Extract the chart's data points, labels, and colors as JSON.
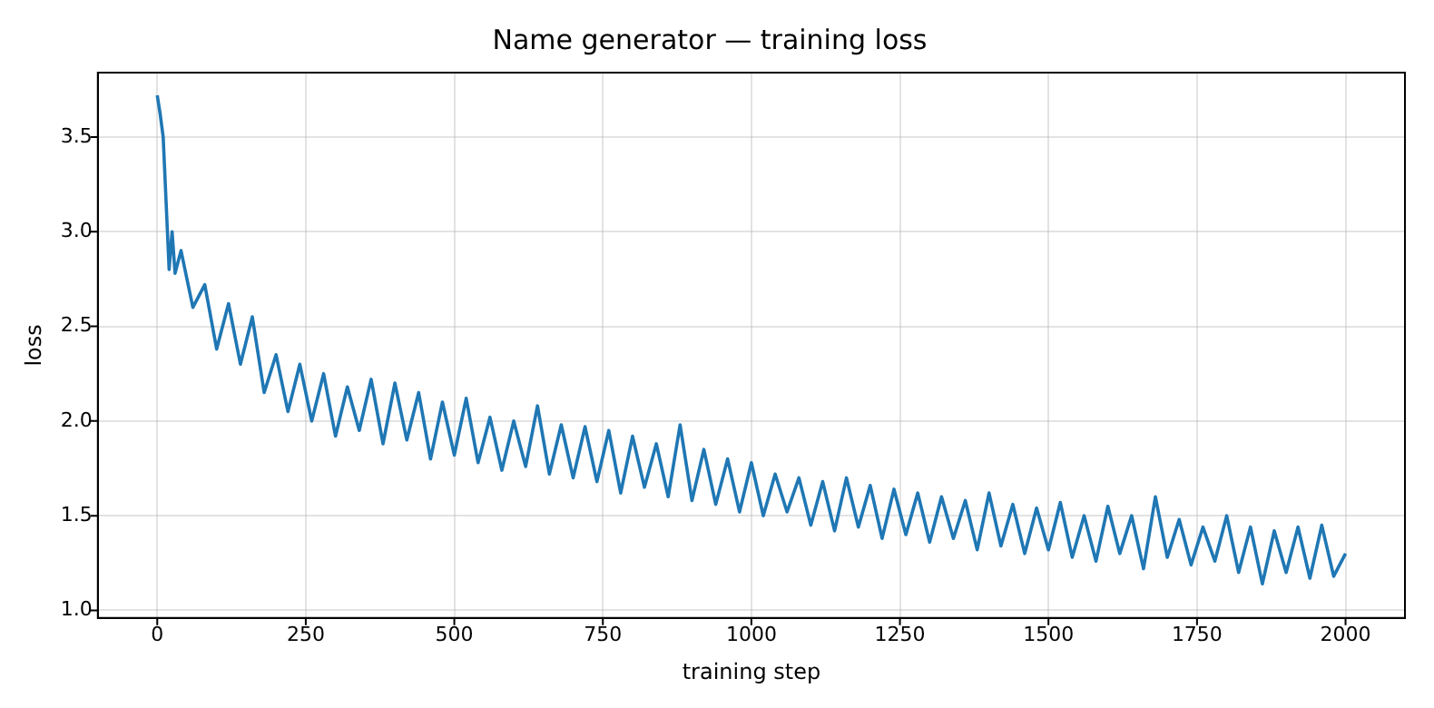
{
  "chart_data": {
    "type": "line",
    "title": "Name generator — training loss",
    "xlabel": "training step",
    "ylabel": "loss",
    "x": [
      0,
      5,
      10,
      15,
      20,
      25,
      30,
      40,
      60,
      80,
      100,
      120,
      140,
      160,
      180,
      200,
      220,
      240,
      260,
      280,
      300,
      320,
      340,
      360,
      380,
      400,
      420,
      440,
      460,
      480,
      500,
      520,
      540,
      560,
      580,
      600,
      620,
      640,
      660,
      680,
      700,
      720,
      740,
      760,
      780,
      800,
      820,
      840,
      860,
      880,
      900,
      920,
      940,
      960,
      980,
      1000,
      1020,
      1040,
      1060,
      1080,
      1100,
      1120,
      1140,
      1160,
      1180,
      1200,
      1220,
      1240,
      1260,
      1280,
      1300,
      1320,
      1340,
      1360,
      1380,
      1400,
      1420,
      1440,
      1460,
      1480,
      1500,
      1520,
      1540,
      1560,
      1580,
      1600,
      1620,
      1640,
      1660,
      1680,
      1700,
      1720,
      1740,
      1760,
      1780,
      1800,
      1820,
      1840,
      1860,
      1880,
      1900,
      1920,
      1940,
      1960,
      1980,
      2000
    ],
    "series": [
      {
        "color": "#1f77b4",
        "values": [
          3.72,
          3.62,
          3.5,
          3.15,
          2.8,
          3.0,
          2.78,
          2.9,
          2.6,
          2.72,
          2.38,
          2.62,
          2.3,
          2.55,
          2.15,
          2.35,
          2.05,
          2.3,
          2.0,
          2.25,
          1.92,
          2.18,
          1.95,
          2.22,
          1.88,
          2.2,
          1.9,
          2.15,
          1.8,
          2.1,
          1.82,
          2.12,
          1.78,
          2.02,
          1.74,
          2.0,
          1.76,
          2.08,
          1.72,
          1.98,
          1.7,
          1.97,
          1.68,
          1.95,
          1.62,
          1.92,
          1.65,
          1.88,
          1.6,
          1.98,
          1.58,
          1.85,
          1.56,
          1.8,
          1.52,
          1.78,
          1.5,
          1.72,
          1.52,
          1.7,
          1.45,
          1.68,
          1.42,
          1.7,
          1.44,
          1.66,
          1.38,
          1.64,
          1.4,
          1.62,
          1.36,
          1.6,
          1.38,
          1.58,
          1.32,
          1.62,
          1.34,
          1.56,
          1.3,
          1.54,
          1.32,
          1.57,
          1.28,
          1.5,
          1.26,
          1.55,
          1.3,
          1.5,
          1.22,
          1.6,
          1.28,
          1.48,
          1.24,
          1.44,
          1.26,
          1.5,
          1.2,
          1.44,
          1.14,
          1.42,
          1.2,
          1.44,
          1.17,
          1.45,
          1.18,
          1.3
        ]
      }
    ],
    "xlim": [
      -100,
      2100
    ],
    "xticks": [
      0,
      250,
      500,
      750,
      1000,
      1250,
      1500,
      1750,
      2000
    ],
    "ylim": [
      0.96,
      3.84
    ],
    "yticks": [
      {
        "value": 1.0,
        "label": "1.0"
      },
      {
        "value": 1.5,
        "label": "1.5"
      },
      {
        "value": 2.0,
        "label": "2.0"
      },
      {
        "value": 2.5,
        "label": "2.5"
      },
      {
        "value": 3.0,
        "label": "3.0"
      },
      {
        "value": 3.5,
        "label": "3.5"
      }
    ],
    "grid": true,
    "marker": "none",
    "line_style": "solid"
  }
}
